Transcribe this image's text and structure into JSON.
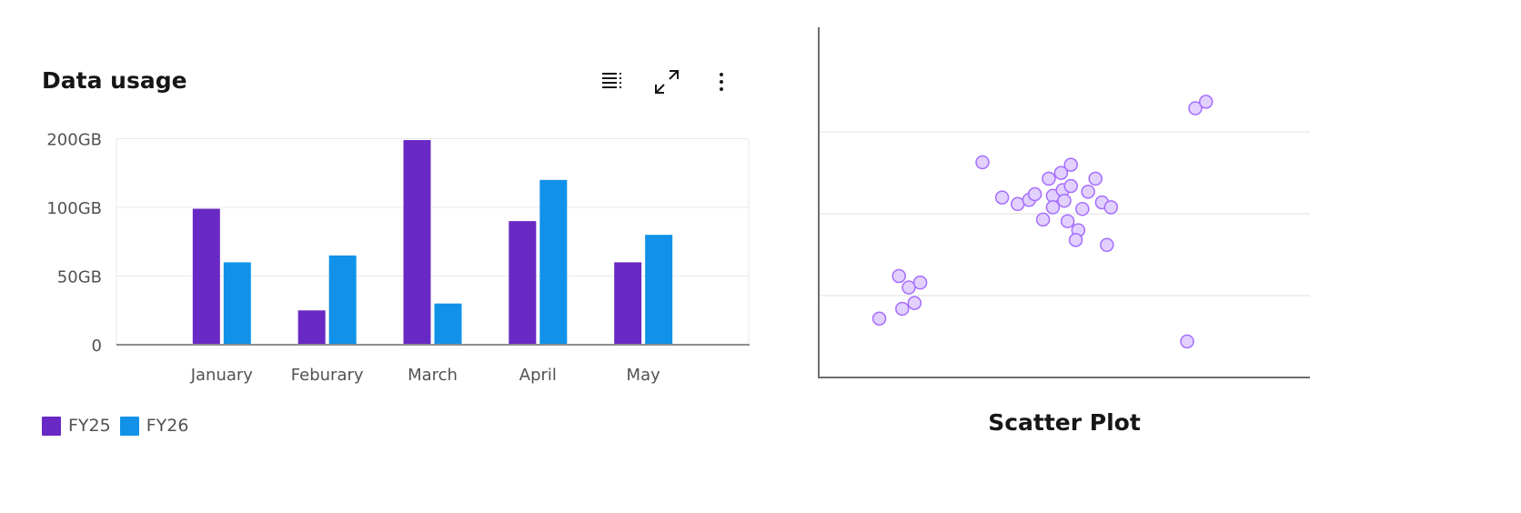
{
  "bar_panel": {
    "title": "Data usage",
    "toolbar": {
      "icons": [
        "list-icon",
        "maximize-icon",
        "overflow-menu-vertical-icon"
      ]
    }
  },
  "scatter_panel": {
    "title": "Scatter Plot"
  },
  "colors": {
    "FY25": "#6929c4",
    "FY26": "#1192e8",
    "scatter_fill": "#e2d0ff",
    "scatter_stroke": "#a56eff"
  },
  "chart_data": [
    {
      "type": "bar",
      "title": "Data usage",
      "categories": [
        "January",
        "Feburary",
        "March",
        "April",
        "May"
      ],
      "series": [
        {
          "name": "FY25",
          "values": [
            99,
            25,
            198,
            90,
            60
          ]
        },
        {
          "name": "FY26",
          "values": [
            60,
            65,
            30,
            140,
            80
          ]
        }
      ],
      "y_ticks": [
        {
          "value": 0,
          "label": "0"
        },
        {
          "value": 50,
          "label": "50GB"
        },
        {
          "value": 100,
          "label": "100GB"
        },
        {
          "value": 200,
          "label": "200GB"
        }
      ],
      "ylim": [
        0,
        200
      ],
      "grid": true,
      "legend": "bottom-left"
    },
    {
      "type": "scatter",
      "title": "Scatter Plot",
      "xlim": [
        0,
        6
      ],
      "ylim": [
        0,
        4.28
      ],
      "y_gridlines": [
        1,
        2,
        3
      ],
      "grid": true,
      "points": [
        [
          0.74,
          0.72
        ],
        [
          0.98,
          1.24
        ],
        [
          1.1,
          1.1
        ],
        [
          1.24,
          1.16
        ],
        [
          1.02,
          0.84
        ],
        [
          1.17,
          0.91
        ],
        [
          2.0,
          2.63
        ],
        [
          2.24,
          2.2
        ],
        [
          2.43,
          2.12
        ],
        [
          2.57,
          2.17
        ],
        [
          2.64,
          2.24
        ],
        [
          2.81,
          2.43
        ],
        [
          2.96,
          2.5
        ],
        [
          3.08,
          2.6
        ],
        [
          2.86,
          2.22
        ],
        [
          2.98,
          2.29
        ],
        [
          3.08,
          2.34
        ],
        [
          3.0,
          2.16
        ],
        [
          2.86,
          2.08
        ],
        [
          3.22,
          2.06
        ],
        [
          3.29,
          2.27
        ],
        [
          3.38,
          2.43
        ],
        [
          3.46,
          2.14
        ],
        [
          3.57,
          2.08
        ],
        [
          2.74,
          1.93
        ],
        [
          3.04,
          1.91
        ],
        [
          3.17,
          1.8
        ],
        [
          3.14,
          1.68
        ],
        [
          3.52,
          1.62
        ],
        [
          4.6,
          3.29
        ],
        [
          4.73,
          3.37
        ],
        [
          4.5,
          0.44
        ]
      ]
    }
  ]
}
